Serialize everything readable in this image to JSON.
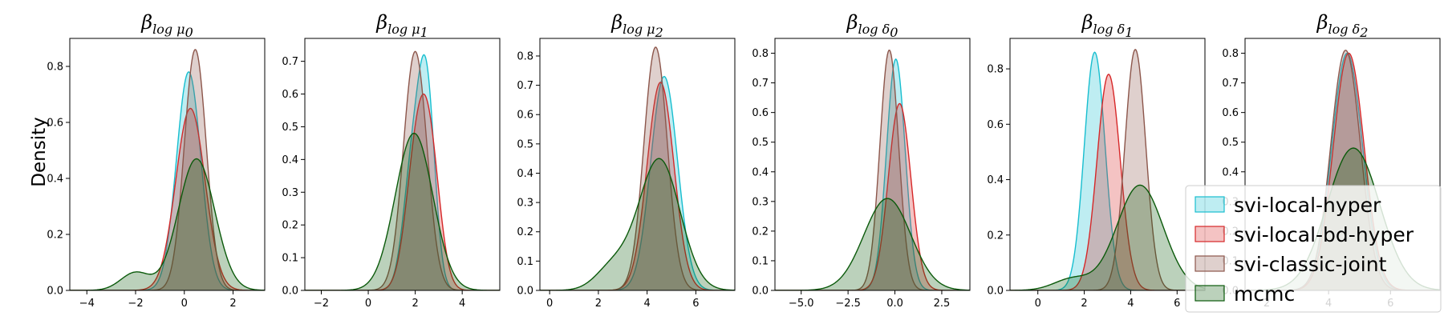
{
  "figure": {
    "ylabel": "Density",
    "colors": {
      "svi-local-hyper": "#17becf",
      "svi-local-bd-hyper": "#d62728",
      "svi-classic-joint": "#8c564b",
      "mcmc": "#0b5a0b"
    },
    "legend": {
      "placement": "bottom-right",
      "entries": [
        "svi-local-hyper",
        "svi-local-bd-hyper",
        "svi-classic-joint",
        "mcmc"
      ]
    }
  },
  "chart_data": [
    {
      "type": "area",
      "title_main": "β",
      "title_sub": "log μ",
      "title_index": "0",
      "xlim": [
        -4.7,
        3.3
      ],
      "ylim": [
        0,
        0.9
      ],
      "xticks": [
        -4,
        -2,
        0,
        2
      ],
      "yticks": [
        0.0,
        0.2,
        0.4,
        0.6,
        0.8
      ],
      "ylabel": "Density",
      "series": [
        {
          "name": "svi-local-hyper",
          "components": [
            {
              "w": 1,
              "mu": 0.18,
              "sd": 0.5
            }
          ],
          "peak": 0.78
        },
        {
          "name": "svi-local-bd-hyper",
          "components": [
            {
              "w": 1,
              "mu": 0.25,
              "sd": 0.6
            }
          ],
          "peak": 0.65
        },
        {
          "name": "svi-classic-joint",
          "components": [
            {
              "w": 1,
              "mu": 0.45,
              "sd": 0.45
            }
          ],
          "peak": 0.86
        },
        {
          "name": "mcmc",
          "components": [
            {
              "w": 0.88,
              "mu": 0.5,
              "sd": 0.75
            },
            {
              "w": 0.12,
              "mu": -2.0,
              "sd": 0.6
            }
          ],
          "peak": 0.47
        }
      ]
    },
    {
      "type": "area",
      "title_main": "β",
      "title_sub": "log μ",
      "title_index": "1",
      "xlim": [
        -2.7,
        5.6
      ],
      "ylim": [
        0,
        0.77
      ],
      "xticks": [
        -2,
        0,
        2,
        4
      ],
      "yticks": [
        0.0,
        0.1,
        0.2,
        0.3,
        0.4,
        0.5,
        0.6,
        0.7
      ],
      "series": [
        {
          "name": "svi-local-hyper",
          "components": [
            {
              "w": 0.6,
              "mu": 2.5,
              "sd": 0.35
            },
            {
              "w": 0.4,
              "mu": 1.9,
              "sd": 0.4
            }
          ],
          "peak": 0.72
        },
        {
          "name": "svi-local-bd-hyper",
          "components": [
            {
              "w": 0.55,
              "mu": 2.6,
              "sd": 0.45
            },
            {
              "w": 0.45,
              "mu": 2.0,
              "sd": 0.45
            }
          ],
          "peak": 0.6
        },
        {
          "name": "svi-classic-joint",
          "components": [
            {
              "w": 1,
              "mu": 2.0,
              "sd": 0.5
            }
          ],
          "peak": 0.73
        },
        {
          "name": "mcmc",
          "components": [
            {
              "w": 1,
              "mu": 1.95,
              "sd": 0.8
            }
          ],
          "peak": 0.48
        }
      ]
    },
    {
      "type": "area",
      "title_main": "β",
      "title_sub": "log μ",
      "title_index": "2",
      "xlim": [
        -0.4,
        7.6
      ],
      "ylim": [
        0,
        0.86
      ],
      "xticks": [
        0,
        2,
        4,
        6
      ],
      "yticks": [
        0.0,
        0.1,
        0.2,
        0.3,
        0.4,
        0.5,
        0.6,
        0.7,
        0.8
      ],
      "series": [
        {
          "name": "svi-local-hyper",
          "components": [
            {
              "w": 1,
              "mu": 4.7,
              "sd": 0.55
            }
          ],
          "peak": 0.73
        },
        {
          "name": "svi-local-bd-hyper",
          "components": [
            {
              "w": 1,
              "mu": 4.55,
              "sd": 0.55
            }
          ],
          "peak": 0.71
        },
        {
          "name": "svi-classic-joint",
          "components": [
            {
              "w": 1,
              "mu": 4.35,
              "sd": 0.48
            }
          ],
          "peak": 0.83
        },
        {
          "name": "mcmc",
          "components": [
            {
              "w": 0.85,
              "mu": 4.5,
              "sd": 0.85
            },
            {
              "w": 0.15,
              "mu": 2.6,
              "sd": 0.7
            }
          ],
          "peak": 0.45
        }
      ]
    },
    {
      "type": "area",
      "title_main": "β",
      "title_sub": "log δ",
      "title_index": "0",
      "xlim": [
        -6.4,
        4.0
      ],
      "ylim": [
        0,
        0.85
      ],
      "xticks": [
        -5.0,
        -2.5,
        0.0,
        2.5
      ],
      "yticks": [
        0.0,
        0.1,
        0.2,
        0.3,
        0.4,
        0.5,
        0.6,
        0.7,
        0.8
      ],
      "series": [
        {
          "name": "svi-local-hyper",
          "components": [
            {
              "w": 1,
              "mu": 0.05,
              "sd": 0.5
            }
          ],
          "peak": 0.78
        },
        {
          "name": "svi-local-bd-hyper",
          "components": [
            {
              "w": 1,
              "mu": 0.25,
              "sd": 0.6
            }
          ],
          "peak": 0.63
        },
        {
          "name": "svi-classic-joint",
          "components": [
            {
              "w": 1,
              "mu": -0.3,
              "sd": 0.5
            }
          ],
          "peak": 0.81
        },
        {
          "name": "mcmc",
          "components": [
            {
              "w": 1,
              "mu": -0.4,
              "sd": 1.25
            }
          ],
          "peak": 0.31
        }
      ]
    },
    {
      "type": "area",
      "title_main": "β",
      "title_sub": "log δ",
      "title_index": "1",
      "xlim": [
        -1.2,
        7.2
      ],
      "ylim": [
        0,
        0.91
      ],
      "xticks": [
        0,
        2,
        4,
        6
      ],
      "yticks": [
        0.0,
        0.2,
        0.4,
        0.6,
        0.8
      ],
      "series": [
        {
          "name": "svi-local-hyper",
          "components": [
            {
              "w": 1,
              "mu": 2.45,
              "sd": 0.45
            }
          ],
          "peak": 0.86
        },
        {
          "name": "svi-local-bd-hyper",
          "components": [
            {
              "w": 1,
              "mu": 3.05,
              "sd": 0.5
            }
          ],
          "peak": 0.78
        },
        {
          "name": "svi-classic-joint",
          "components": [
            {
              "w": 1,
              "mu": 4.2,
              "sd": 0.45
            }
          ],
          "peak": 0.87
        },
        {
          "name": "mcmc",
          "components": [
            {
              "w": 0.9,
              "mu": 4.4,
              "sd": 1.0
            },
            {
              "w": 0.1,
              "mu": 1.5,
              "sd": 0.8
            }
          ],
          "peak": 0.38
        }
      ]
    },
    {
      "type": "area",
      "title_main": "β",
      "title_sub": "log δ",
      "title_index": "2",
      "xlim": [
        1.3,
        7.6
      ],
      "ylim": [
        0,
        0.85
      ],
      "xticks": [
        2,
        4,
        6
      ],
      "yticks": [
        0.0,
        0.1,
        0.2,
        0.3,
        0.4,
        0.5,
        0.6,
        0.7,
        0.8
      ],
      "series": [
        {
          "name": "svi-local-hyper",
          "components": [
            {
              "w": 1,
              "mu": 4.6,
              "sd": 0.5
            }
          ],
          "peak": 0.8
        },
        {
          "name": "svi-local-bd-hyper",
          "components": [
            {
              "w": 1,
              "mu": 4.65,
              "sd": 0.5
            }
          ],
          "peak": 0.8
        },
        {
          "name": "svi-classic-joint",
          "components": [
            {
              "w": 1,
              "mu": 4.55,
              "sd": 0.48
            }
          ],
          "peak": 0.81
        },
        {
          "name": "mcmc",
          "components": [
            {
              "w": 1,
              "mu": 4.8,
              "sd": 0.85
            }
          ],
          "peak": 0.48
        }
      ]
    }
  ]
}
